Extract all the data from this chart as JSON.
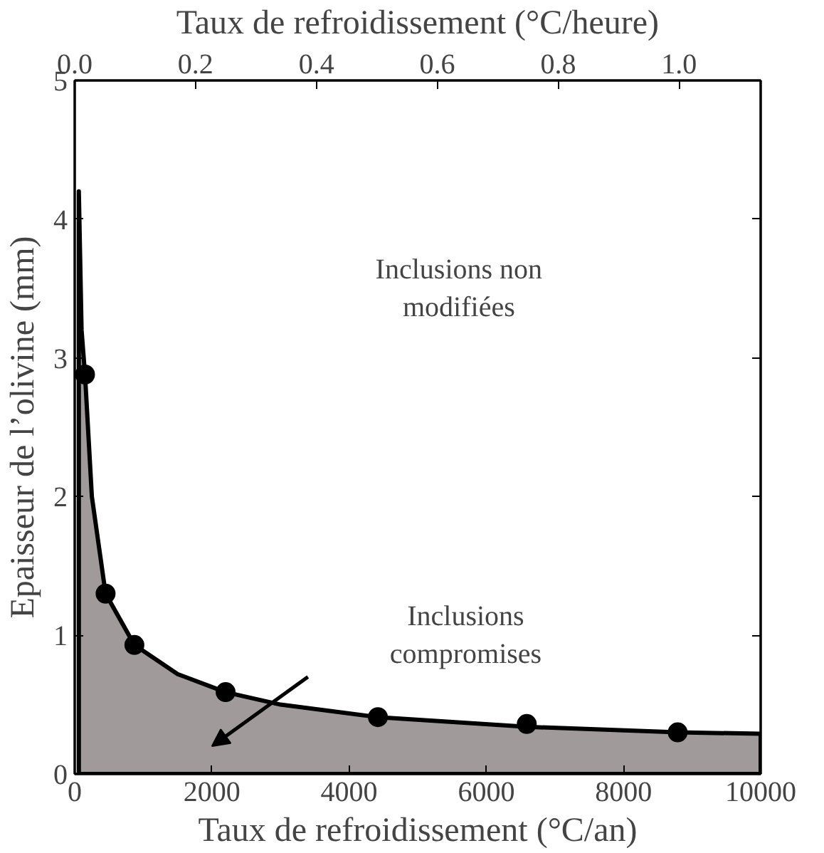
{
  "chart_data": {
    "type": "area",
    "xlabel": "Taux de refroidissement (°C/an)",
    "x2label": "Taux de refroidissement (°C/heure)",
    "ylabel": "Epaisseur de l’olivine (mm)",
    "xlim": [
      0,
      10000
    ],
    "xticks": [
      0,
      2000,
      4000,
      6000,
      8000,
      10000
    ],
    "x2lim": [
      0,
      1.135
    ],
    "x2ticks": [
      {
        "value": 0,
        "label": "0.0"
      },
      {
        "value": 0.2,
        "label": "0.2"
      },
      {
        "value": 0.4,
        "label": "0.4"
      },
      {
        "value": 0.6,
        "label": "0.6"
      },
      {
        "value": 0.8,
        "label": "0.8"
      },
      {
        "value": 1.0,
        "label": "1.0"
      }
    ],
    "ylim": [
      0,
      5
    ],
    "yticks": [
      0,
      1,
      2,
      3,
      4,
      5
    ],
    "grid": false,
    "series": [
      {
        "color": "#a09b9a",
        "x": [
          60,
          100,
          150,
          250,
          450,
          870,
          1500,
          2200,
          3000,
          4420,
          6590,
          8790,
          10000
        ],
        "values": [
          4.2,
          3.2,
          2.88,
          2.0,
          1.3,
          0.93,
          0.72,
          0.59,
          0.5,
          0.41,
          0.34,
          0.3,
          0.29
        ]
      },
      {
        "type": "scatter",
        "color": "#000000",
        "marker": "circle",
        "x": [
          150,
          450,
          870,
          2200,
          4420,
          6590,
          8790
        ],
        "values": [
          2.88,
          1.3,
          0.93,
          0.59,
          0.41,
          0.36,
          0.3
        ]
      }
    ],
    "annotations": [
      "Inclusions non\nmodifiées",
      "Inclusions\ncompromises"
    ]
  }
}
